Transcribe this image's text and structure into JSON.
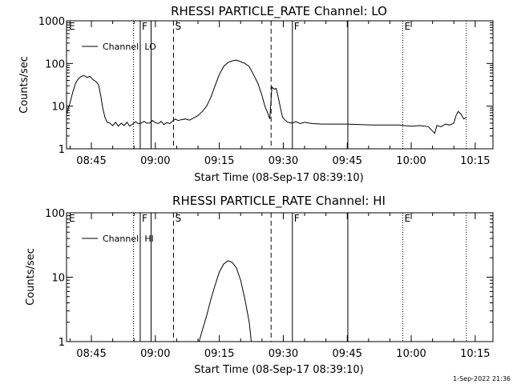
{
  "footer_timestamp": "1-Sep-2022 21:36",
  "chart_data": [
    {
      "type": "line",
      "title": "RHESSI PARTICLE_RATE Channel: LO",
      "xlabel": "Start Time (08-Sep-17 08:39:10)",
      "ylabel": "Counts/sec",
      "yscale": "log",
      "ylim": [
        1,
        1000
      ],
      "xlim": [
        "08:39:10",
        "10:19:10"
      ],
      "x_tick_labels": [
        "08:45",
        "09:00",
        "09:15",
        "09:30",
        "09:45",
        "10:00",
        "10:15"
      ],
      "y_tick_labels": [
        "1",
        "10",
        "100",
        "1000"
      ],
      "legend": {
        "position": "top-left",
        "entries": [
          "Channel: LO"
        ]
      },
      "grid": false,
      "markers": [
        {
          "time": "08:54:53",
          "style": "dotted",
          "label": ""
        },
        {
          "time": "08:56:27",
          "style": "solid",
          "label": "F"
        },
        {
          "time": "08:59:00",
          "style": "solid",
          "label": ""
        },
        {
          "time": "09:04:15",
          "style": "dashed",
          "label": "S"
        },
        {
          "time": "09:27:08",
          "style": "dashed",
          "label": ""
        },
        {
          "time": "09:32:08",
          "style": "solid",
          "label": "F"
        },
        {
          "time": "09:45:08",
          "style": "solid",
          "label": ""
        },
        {
          "time": "09:58:01",
          "style": "dotted",
          "label": "E"
        },
        {
          "time": "10:12:55",
          "style": "dotted",
          "label": ""
        }
      ],
      "corner_label": "E",
      "series": [
        {
          "name": "Channel: LO",
          "points": [
            [
              "08:39:10",
              6.5
            ],
            [
              "08:40:00",
              12
            ],
            [
              "08:40:40",
              22
            ],
            [
              "08:41:20",
              35
            ],
            [
              "08:42:00",
              45
            ],
            [
              "08:42:40",
              50
            ],
            [
              "08:43:20",
              52
            ],
            [
              "08:44:00",
              47
            ],
            [
              "08:44:40",
              50
            ],
            [
              "08:45:20",
              42
            ],
            [
              "08:46:00",
              38
            ],
            [
              "08:46:40",
              32
            ],
            [
              "08:47:10",
              18
            ],
            [
              "08:47:40",
              9
            ],
            [
              "08:48:10",
              5.5
            ],
            [
              "08:48:40",
              4.2
            ],
            [
              "08:49:20",
              4.0
            ],
            [
              "08:50:00",
              3.5
            ],
            [
              "08:50:40",
              4.2
            ],
            [
              "08:51:20",
              3.4
            ],
            [
              "08:52:00",
              4.0
            ],
            [
              "08:52:40",
              3.5
            ],
            [
              "08:53:20",
              4.2
            ],
            [
              "08:54:00",
              3.4
            ],
            [
              "08:54:40",
              3.8
            ],
            [
              "08:55:20",
              4.3
            ],
            [
              "08:56:00",
              3.9
            ],
            [
              "08:56:40",
              4.0
            ],
            [
              "08:57:20",
              4.4
            ],
            [
              "08:58:00",
              4.0
            ],
            [
              "08:58:40",
              4.0
            ],
            [
              "08:59:20",
              4.6
            ],
            [
              "09:00:00",
              4.1
            ],
            [
              "09:00:40",
              3.9
            ],
            [
              "09:01:20",
              4.4
            ],
            [
              "09:02:00",
              3.7
            ],
            [
              "09:02:40",
              4.1
            ],
            [
              "09:03:20",
              3.9
            ],
            [
              "09:04:00",
              4.4
            ],
            [
              "09:04:40",
              5.0
            ],
            [
              "09:05:20",
              4.6
            ],
            [
              "09:06:00",
              4.8
            ],
            [
              "09:07:00",
              5.0
            ],
            [
              "09:08:00",
              4.7
            ],
            [
              "09:09:00",
              5.3
            ],
            [
              "09:10:00",
              6.0
            ],
            [
              "09:11:00",
              7.5
            ],
            [
              "09:12:00",
              10
            ],
            [
              "09:13:00",
              16
            ],
            [
              "09:14:00",
              30
            ],
            [
              "09:15:00",
              55
            ],
            [
              "09:16:00",
              85
            ],
            [
              "09:17:00",
              105
            ],
            [
              "09:18:00",
              115
            ],
            [
              "09:19:00",
              120
            ],
            [
              "09:20:00",
              110
            ],
            [
              "09:21:00",
              100
            ],
            [
              "09:22:00",
              85
            ],
            [
              "09:23:00",
              55
            ],
            [
              "09:24:00",
              35
            ],
            [
              "09:25:00",
              18
            ],
            [
              "09:25:40",
              10
            ],
            [
              "09:26:20",
              7
            ],
            [
              "09:26:50",
              5
            ],
            [
              "09:27:20",
              28
            ],
            [
              "09:27:50",
              25
            ],
            [
              "09:28:20",
              26
            ],
            [
              "09:28:50",
              16
            ],
            [
              "09:29:20",
              9
            ],
            [
              "09:29:50",
              5.5
            ],
            [
              "09:30:20",
              4.8
            ],
            [
              "09:31:00",
              4.2
            ],
            [
              "09:32:00",
              4.0
            ],
            [
              "09:33:00",
              4.3
            ],
            [
              "09:34:00",
              3.9
            ],
            [
              "09:35:00",
              4.2
            ],
            [
              "09:36:00",
              4.0
            ],
            [
              "09:37:00",
              3.9
            ],
            [
              "09:39:00",
              3.8
            ],
            [
              "09:42:00",
              3.8
            ],
            [
              "09:45:00",
              3.8
            ],
            [
              "09:48:00",
              3.7
            ],
            [
              "09:51:00",
              3.6
            ],
            [
              "09:54:00",
              3.6
            ],
            [
              "09:57:00",
              3.6
            ],
            [
              "10:00:00",
              3.4
            ],
            [
              "10:02:00",
              3.5
            ],
            [
              "10:04:00",
              3.3
            ],
            [
              "10:05:30",
              2.3
            ],
            [
              "10:06:00",
              3.5
            ],
            [
              "10:07:00",
              3.3
            ],
            [
              "10:08:00",
              3.8
            ],
            [
              "10:09:00",
              3.6
            ],
            [
              "10:10:00",
              4.0
            ],
            [
              "10:10:30",
              6.0
            ],
            [
              "10:11:00",
              7.5
            ],
            [
              "10:11:40",
              6.5
            ],
            [
              "10:12:20",
              5.0
            ],
            [
              "10:13:00",
              5.5
            ]
          ]
        }
      ]
    },
    {
      "type": "line",
      "title": "RHESSI PARTICLE_RATE Channel: HI",
      "xlabel": "Start Time (08-Sep-17 08:39:10)",
      "ylabel": "Counts/sec",
      "yscale": "log",
      "ylim": [
        1,
        100
      ],
      "xlim": [
        "08:39:10",
        "10:19:10"
      ],
      "x_tick_labels": [
        "08:45",
        "09:00",
        "09:15",
        "09:30",
        "09:45",
        "10:00",
        "10:15"
      ],
      "y_tick_labels": [
        "1",
        "10",
        "100"
      ],
      "legend": {
        "position": "top-left",
        "entries": [
          "Channel: HI"
        ]
      },
      "grid": false,
      "markers": [
        {
          "time": "08:54:53",
          "style": "dotted",
          "label": ""
        },
        {
          "time": "08:56:27",
          "style": "solid",
          "label": "F"
        },
        {
          "time": "08:59:00",
          "style": "solid",
          "label": ""
        },
        {
          "time": "09:04:15",
          "style": "dashed",
          "label": "S"
        },
        {
          "time": "09:27:08",
          "style": "dashed",
          "label": ""
        },
        {
          "time": "09:32:08",
          "style": "solid",
          "label": "F"
        },
        {
          "time": "09:45:08",
          "style": "solid",
          "label": ""
        },
        {
          "time": "09:58:01",
          "style": "dotted",
          "label": "E"
        },
        {
          "time": "10:12:55",
          "style": "dotted",
          "label": ""
        }
      ],
      "corner_label": "E",
      "series": [
        {
          "name": "Channel: HI",
          "points": [
            [
              "09:10:15",
              1.0
            ],
            [
              "09:11:00",
              1.5
            ],
            [
              "09:12:00",
              2.5
            ],
            [
              "09:13:00",
              4.5
            ],
            [
              "09:14:00",
              7.5
            ],
            [
              "09:15:00",
              12
            ],
            [
              "09:16:00",
              16
            ],
            [
              "09:17:00",
              18
            ],
            [
              "09:18:00",
              17
            ],
            [
              "09:19:00",
              14
            ],
            [
              "09:20:00",
              9
            ],
            [
              "09:21:00",
              4.5
            ],
            [
              "09:22:00",
              2.0
            ],
            [
              "09:22:30",
              1.0
            ]
          ]
        }
      ]
    }
  ]
}
